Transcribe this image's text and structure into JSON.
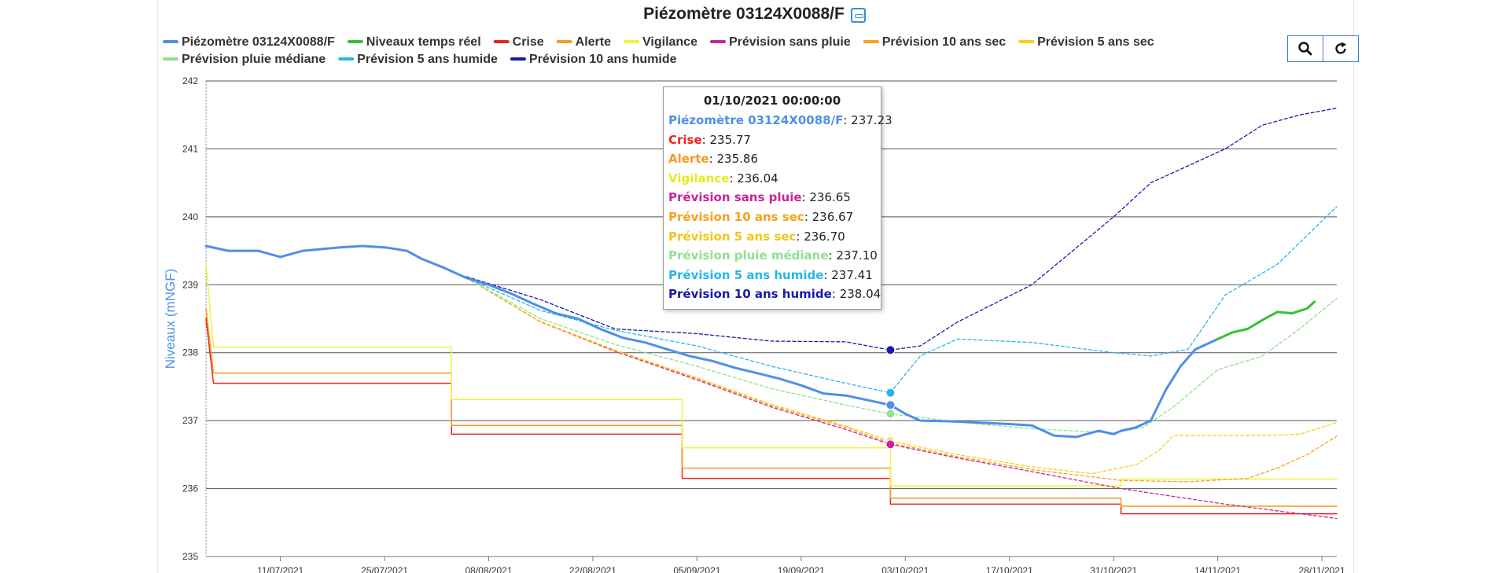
{
  "title": "Piézomètre 03124X0088/F",
  "toolbar": {
    "zoom_icon": "search-icon",
    "reset_icon": "refresh-icon"
  },
  "legend": [
    {
      "name": "Piézomètre 03124X0088/F",
      "color": "#4f8fe8"
    },
    {
      "name": "Niveaux temps réel",
      "color": "#33c233"
    },
    {
      "name": "Crise",
      "color": "#ee2222"
    },
    {
      "name": "Alerte",
      "color": "#f59a23"
    },
    {
      "name": "Vigilance",
      "color": "#f2f23a"
    },
    {
      "name": "Prévision sans pluie",
      "color": "#c5279b"
    },
    {
      "name": "Prévision 10 ans sec",
      "color": "#f7a21b"
    },
    {
      "name": "Prévision 5 ans sec",
      "color": "#f5d21a"
    },
    {
      "name": "Prévision pluie médiane",
      "color": "#8fe08f"
    },
    {
      "name": "Prévision 5 ans humide",
      "color": "#29b6ee"
    },
    {
      "name": "Prévision 10 ans humide",
      "color": "#1a1aa8"
    }
  ],
  "tooltip": {
    "date": "01/10/2021 00:00:00",
    "rows": [
      {
        "name": "Piézomètre 03124X0088/F",
        "value": "237.23",
        "color": "#4f8fe8"
      },
      {
        "name": "Crise",
        "value": "235.77",
        "color": "#ee2222"
      },
      {
        "name": "Alerte",
        "value": "235.86",
        "color": "#f59a23"
      },
      {
        "name": "Vigilance",
        "value": "236.04",
        "color": "#e8e820"
      },
      {
        "name": "Prévision sans pluie",
        "value": "236.65",
        "color": "#c5279b"
      },
      {
        "name": "Prévision 10 ans sec",
        "value": "236.67",
        "color": "#f7a21b"
      },
      {
        "name": "Prévision 5 ans sec",
        "value": "236.70",
        "color": "#f5c51a"
      },
      {
        "name": "Prévision pluie médiane",
        "value": "237.10",
        "color": "#8fe08f"
      },
      {
        "name": "Prévision 5 ans humide",
        "value": "237.41",
        "color": "#29b6ee"
      },
      {
        "name": "Prévision 10 ans humide",
        "value": "238.04",
        "color": "#1a1aa8"
      }
    ]
  },
  "chart_data": {
    "type": "line",
    "title": "Piézomètre 03124X0088/F",
    "ylabel": "Niveaux (mNGF)",
    "xlabel": "",
    "ylim": [
      235,
      242
    ],
    "xlim": [
      "2021-07-01",
      "2021-11-30"
    ],
    "yticks": [
      235,
      236,
      237,
      238,
      239,
      240,
      241,
      242
    ],
    "xticks": [
      "11/07/2021",
      "25/07/2021",
      "08/08/2021",
      "22/08/2021",
      "05/09/2021",
      "19/09/2021",
      "03/10/2021",
      "17/10/2021",
      "31/10/2021",
      "14/11/2021",
      "28/11/2021"
    ],
    "grid": true,
    "legend_position": "top",
    "series": [
      {
        "name": "Piézomètre 03124X0088/F",
        "color": "#4f8fe8",
        "style": "solid",
        "width": 3,
        "points": [
          [
            "2021-07-01",
            239.57
          ],
          [
            "2021-07-04",
            239.5
          ],
          [
            "2021-07-08",
            239.5
          ],
          [
            "2021-07-11",
            239.41
          ],
          [
            "2021-07-14",
            239.5
          ],
          [
            "2021-07-19",
            239.55
          ],
          [
            "2021-07-22",
            239.57
          ],
          [
            "2021-07-25",
            239.55
          ],
          [
            "2021-07-28",
            239.5
          ],
          [
            "2021-07-30",
            239.38
          ],
          [
            "2021-08-02",
            239.25
          ],
          [
            "2021-08-05",
            239.1
          ],
          [
            "2021-08-08",
            239.0
          ],
          [
            "2021-08-11",
            238.87
          ],
          [
            "2021-08-14",
            238.72
          ],
          [
            "2021-08-17",
            238.58
          ],
          [
            "2021-08-20",
            238.5
          ],
          [
            "2021-08-23",
            238.35
          ],
          [
            "2021-08-26",
            238.22
          ],
          [
            "2021-08-29",
            238.15
          ],
          [
            "2021-09-01",
            238.05
          ],
          [
            "2021-09-04",
            237.95
          ],
          [
            "2021-09-07",
            237.88
          ],
          [
            "2021-09-10",
            237.78
          ],
          [
            "2021-09-13",
            237.7
          ],
          [
            "2021-09-16",
            237.62
          ],
          [
            "2021-09-19",
            237.52
          ],
          [
            "2021-09-22",
            237.4
          ],
          [
            "2021-09-25",
            237.37
          ],
          [
            "2021-09-28",
            237.3
          ],
          [
            "2021-10-01",
            237.23
          ],
          [
            "2021-10-03",
            237.1
          ],
          [
            "2021-10-05",
            237.0
          ],
          [
            "2021-10-09",
            236.99
          ],
          [
            "2021-10-13",
            236.97
          ],
          [
            "2021-10-17",
            236.95
          ],
          [
            "2021-10-20",
            236.93
          ],
          [
            "2021-10-23",
            236.78
          ],
          [
            "2021-10-26",
            236.76
          ],
          [
            "2021-10-29",
            236.85
          ],
          [
            "2021-10-31",
            236.8
          ],
          [
            "2021-11-01",
            236.85
          ],
          [
            "2021-11-03",
            236.9
          ],
          [
            "2021-11-05",
            237.0
          ],
          [
            "2021-11-07",
            237.45
          ],
          [
            "2021-11-09",
            237.8
          ],
          [
            "2021-11-11",
            238.05
          ],
          [
            "2021-11-14",
            238.2
          ]
        ]
      },
      {
        "name": "Niveaux temps réel",
        "color": "#33c233",
        "style": "solid",
        "width": 3,
        "points": [
          [
            "2021-11-14",
            238.2
          ],
          [
            "2021-11-16",
            238.3
          ],
          [
            "2021-11-18",
            238.35
          ],
          [
            "2021-11-20",
            238.48
          ],
          [
            "2021-11-22",
            238.6
          ],
          [
            "2021-11-24",
            238.58
          ],
          [
            "2021-11-26",
            238.65
          ],
          [
            "2021-11-27",
            238.75
          ]
        ]
      },
      {
        "name": "Crise",
        "color": "#ee2222",
        "style": "step",
        "width": 1.5,
        "points": [
          [
            "2021-07-01",
            238.5
          ],
          [
            "2021-07-02",
            237.55
          ],
          [
            "2021-08-03",
            237.55
          ],
          [
            "2021-08-03",
            236.8
          ],
          [
            "2021-09-03",
            236.8
          ],
          [
            "2021-09-03",
            236.15
          ],
          [
            "2021-10-01",
            236.15
          ],
          [
            "2021-10-01",
            235.77
          ],
          [
            "2021-11-01",
            235.77
          ],
          [
            "2021-11-01",
            235.63
          ],
          [
            "2021-11-30",
            235.63
          ]
        ]
      },
      {
        "name": "Alerte",
        "color": "#f59a23",
        "style": "step",
        "width": 1.5,
        "points": [
          [
            "2021-07-01",
            238.65
          ],
          [
            "2021-07-02",
            237.7
          ],
          [
            "2021-08-03",
            237.7
          ],
          [
            "2021-08-03",
            236.93
          ],
          [
            "2021-09-03",
            236.93
          ],
          [
            "2021-09-03",
            236.3
          ],
          [
            "2021-10-01",
            236.3
          ],
          [
            "2021-10-01",
            235.86
          ],
          [
            "2021-11-01",
            235.86
          ],
          [
            "2021-11-01",
            235.74
          ],
          [
            "2021-11-30",
            235.74
          ]
        ]
      },
      {
        "name": "Vigilance",
        "color": "#f2f23a",
        "style": "step",
        "width": 1.5,
        "points": [
          [
            "2021-07-01",
            239.3
          ],
          [
            "2021-07-02",
            238.08
          ],
          [
            "2021-08-03",
            238.08
          ],
          [
            "2021-08-03",
            237.31
          ],
          [
            "2021-09-03",
            237.31
          ],
          [
            "2021-09-03",
            236.6
          ],
          [
            "2021-10-01",
            236.6
          ],
          [
            "2021-10-01",
            236.04
          ],
          [
            "2021-11-01",
            236.04
          ],
          [
            "2021-11-01",
            236.14
          ],
          [
            "2021-11-30",
            236.14
          ]
        ]
      },
      {
        "name": "Prévision sans pluie",
        "color": "#c5279b",
        "style": "dashed",
        "width": 1.3,
        "points": [
          [
            "2021-08-05",
            239.1
          ],
          [
            "2021-08-15",
            238.45
          ],
          [
            "2021-08-25",
            238.02
          ],
          [
            "2021-09-05",
            237.6
          ],
          [
            "2021-09-15",
            237.2
          ],
          [
            "2021-09-25",
            236.87
          ],
          [
            "2021-10-01",
            236.65
          ],
          [
            "2021-10-10",
            236.45
          ],
          [
            "2021-10-20",
            236.25
          ],
          [
            "2021-11-01",
            236.0
          ],
          [
            "2021-11-15",
            235.77
          ],
          [
            "2021-11-30",
            235.56
          ]
        ]
      },
      {
        "name": "Prévision 10 ans sec",
        "color": "#f7a21b",
        "style": "dashed",
        "width": 1.3,
        "points": [
          [
            "2021-08-05",
            239.1
          ],
          [
            "2021-08-15",
            238.45
          ],
          [
            "2021-08-25",
            238.03
          ],
          [
            "2021-09-05",
            237.62
          ],
          [
            "2021-09-15",
            237.22
          ],
          [
            "2021-09-25",
            236.9
          ],
          [
            "2021-10-01",
            236.67
          ],
          [
            "2021-10-10",
            236.47
          ],
          [
            "2021-10-20",
            236.28
          ],
          [
            "2021-11-01",
            236.12
          ],
          [
            "2021-11-10",
            236.1
          ],
          [
            "2021-11-18",
            236.15
          ],
          [
            "2021-11-22",
            236.3
          ],
          [
            "2021-11-26",
            236.5
          ],
          [
            "2021-11-30",
            236.77
          ]
        ]
      },
      {
        "name": "Prévision 5 ans sec",
        "color": "#f5d21a",
        "style": "dashed",
        "width": 1.3,
        "points": [
          [
            "2021-08-05",
            239.1
          ],
          [
            "2021-08-15",
            238.46
          ],
          [
            "2021-08-25",
            238.04
          ],
          [
            "2021-09-05",
            237.63
          ],
          [
            "2021-09-15",
            237.24
          ],
          [
            "2021-09-25",
            236.92
          ],
          [
            "2021-10-01",
            236.7
          ],
          [
            "2021-10-10",
            236.5
          ],
          [
            "2021-10-20",
            236.32
          ],
          [
            "2021-10-28",
            236.22
          ],
          [
            "2021-11-03",
            236.35
          ],
          [
            "2021-11-06",
            236.55
          ],
          [
            "2021-11-08",
            236.78
          ],
          [
            "2021-11-20",
            236.78
          ],
          [
            "2021-11-25",
            236.8
          ],
          [
            "2021-11-30",
            236.97
          ]
        ]
      },
      {
        "name": "Prévision pluie médiane",
        "color": "#8fe08f",
        "style": "dashed",
        "width": 1.3,
        "points": [
          [
            "2021-08-05",
            239.1
          ],
          [
            "2021-08-15",
            238.5
          ],
          [
            "2021-08-25",
            238.12
          ],
          [
            "2021-09-05",
            237.8
          ],
          [
            "2021-09-15",
            237.47
          ],
          [
            "2021-09-25",
            237.23
          ],
          [
            "2021-10-01",
            237.1
          ],
          [
            "2021-10-10",
            236.98
          ],
          [
            "2021-10-20",
            236.88
          ],
          [
            "2021-10-31",
            236.82
          ],
          [
            "2021-11-04",
            236.9
          ],
          [
            "2021-11-08",
            237.2
          ],
          [
            "2021-11-14",
            237.75
          ],
          [
            "2021-11-20",
            237.95
          ],
          [
            "2021-11-25",
            238.35
          ],
          [
            "2021-11-30",
            238.8
          ]
        ]
      },
      {
        "name": "Prévision 5 ans humide",
        "color": "#29b6ee",
        "style": "dashed",
        "width": 1.3,
        "points": [
          [
            "2021-08-05",
            239.1
          ],
          [
            "2021-08-15",
            238.62
          ],
          [
            "2021-08-25",
            238.33
          ],
          [
            "2021-09-05",
            238.1
          ],
          [
            "2021-09-15",
            237.8
          ],
          [
            "2021-09-25",
            237.55
          ],
          [
            "2021-10-01",
            237.41
          ],
          [
            "2021-10-05",
            237.95
          ],
          [
            "2021-10-10",
            238.2
          ],
          [
            "2021-10-20",
            238.15
          ],
          [
            "2021-10-31",
            238.0
          ],
          [
            "2021-11-05",
            237.95
          ],
          [
            "2021-11-10",
            238.05
          ],
          [
            "2021-11-15",
            238.85
          ],
          [
            "2021-11-22",
            239.3
          ],
          [
            "2021-11-30",
            240.15
          ]
        ]
      },
      {
        "name": "Prévision 10 ans humide",
        "color": "#1a1aa8",
        "style": "dashed",
        "width": 1.3,
        "points": [
          [
            "2021-08-05",
            239.12
          ],
          [
            "2021-08-15",
            238.78
          ],
          [
            "2021-08-25",
            238.35
          ],
          [
            "2021-09-05",
            238.28
          ],
          [
            "2021-09-15",
            238.17
          ],
          [
            "2021-09-25",
            238.16
          ],
          [
            "2021-10-01",
            238.04
          ],
          [
            "2021-10-05",
            238.1
          ],
          [
            "2021-10-10",
            238.45
          ],
          [
            "2021-10-20",
            239.0
          ],
          [
            "2021-10-31",
            240.0
          ],
          [
            "2021-11-05",
            240.5
          ],
          [
            "2021-11-10",
            240.75
          ],
          [
            "2021-11-15",
            241.0
          ],
          [
            "2021-11-20",
            241.35
          ],
          [
            "2021-11-25",
            241.5
          ],
          [
            "2021-11-30",
            241.6
          ]
        ]
      }
    ],
    "markers": [
      {
        "x": "2021-10-01",
        "y": 238.04,
        "color": "#1a1aa8"
      },
      {
        "x": "2021-10-01",
        "y": 237.41,
        "color": "#29b6ee"
      },
      {
        "x": "2021-10-01",
        "y": 237.23,
        "color": "#4f8fe8"
      },
      {
        "x": "2021-10-01",
        "y": 237.1,
        "color": "#8fe08f"
      },
      {
        "x": "2021-10-01",
        "y": 236.7,
        "color": "#f5d21a"
      },
      {
        "x": "2021-10-01",
        "y": 236.67,
        "color": "#f7a21b"
      },
      {
        "x": "2021-10-01",
        "y": 236.65,
        "color": "#c5279b"
      }
    ]
  }
}
